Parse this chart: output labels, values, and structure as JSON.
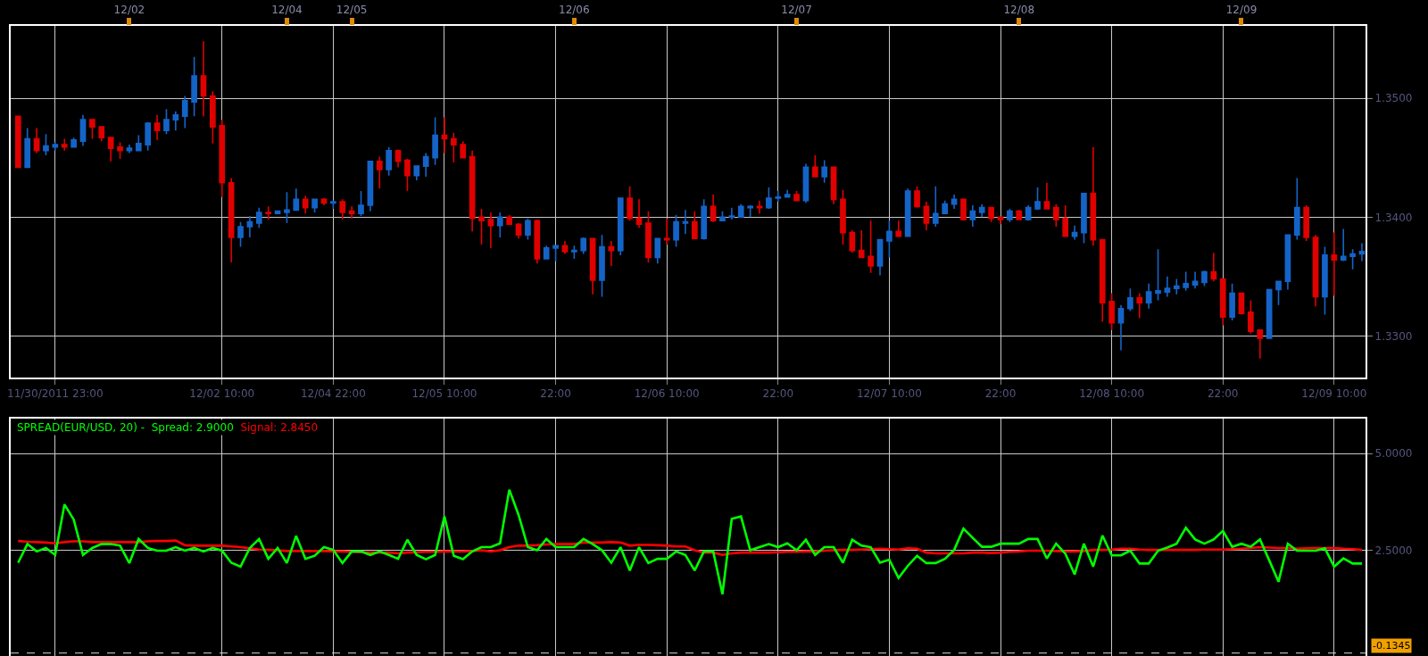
{
  "chart_data": [
    {
      "type": "candlestick",
      "categories": [
        null,
        null,
        null,
        null,
        "11/30/2011 23:00",
        null,
        null,
        null,
        null,
        null,
        null,
        null,
        null,
        null,
        null,
        null,
        null,
        null,
        null,
        null,
        null,
        null,
        "12/02 10:00",
        null,
        null,
        null,
        null,
        null,
        null,
        null,
        null,
        null,
        null,
        null,
        "12/04 22:00",
        null,
        null,
        null,
        null,
        null,
        null,
        null,
        null,
        null,
        null,
        null,
        "12/05 10:00",
        null,
        null,
        null,
        null,
        null,
        null,
        null,
        null,
        null,
        null,
        null,
        "22:00",
        null,
        null,
        null,
        null,
        null,
        null,
        null,
        null,
        null,
        null,
        null,
        "12/06 10:00",
        null,
        null,
        null,
        null,
        null,
        null,
        null,
        null,
        null,
        null,
        null,
        "22:00",
        null,
        null,
        null,
        null,
        null,
        null,
        null,
        null,
        null,
        null,
        null,
        "12/07 10:00",
        null,
        null,
        null,
        null,
        null,
        null,
        null,
        null,
        null,
        null,
        null,
        "22:00",
        null,
        null,
        null,
        null,
        null,
        null,
        null,
        null,
        null,
        null,
        null,
        "12/08 10:00",
        null,
        null,
        null,
        null,
        null,
        null,
        null,
        null,
        null,
        null,
        null,
        "22:00",
        null,
        null,
        null,
        null,
        null,
        null,
        null,
        null,
        null,
        null,
        null,
        "12/09 10:00",
        null,
        null,
        null
      ],
      "ohlc": [
        [
          1.3485,
          1.3485,
          1.3442,
          1.3442
        ],
        [
          1.3442,
          1.3475,
          1.3442,
          1.3466
        ],
        [
          1.3466,
          1.3475,
          1.3454,
          1.3456
        ],
        [
          1.3456,
          1.347,
          1.3452,
          1.346
        ],
        [
          1.3459,
          1.3463,
          1.3456,
          1.3461
        ],
        [
          1.3461,
          1.3466,
          1.3456,
          1.3459
        ],
        [
          1.3459,
          1.3467,
          1.3459,
          1.3465
        ],
        [
          1.3464,
          1.3486,
          1.346,
          1.3482
        ],
        [
          1.3482,
          1.3482,
          1.3466,
          1.3476
        ],
        [
          1.3476,
          1.3476,
          1.3464,
          1.3467
        ],
        [
          1.3467,
          1.3467,
          1.3447,
          1.3458
        ],
        [
          1.3459,
          1.3463,
          1.3449,
          1.3456
        ],
        [
          1.3456,
          1.3461,
          1.3454,
          1.3458
        ],
        [
          1.3456,
          1.3469,
          1.3456,
          1.3462
        ],
        [
          1.3461,
          1.348,
          1.3456,
          1.3479
        ],
        [
          1.3479,
          1.3486,
          1.3465,
          1.3473
        ],
        [
          1.3473,
          1.3491,
          1.347,
          1.3482
        ],
        [
          1.3482,
          1.3489,
          1.3473,
          1.3486
        ],
        [
          1.3485,
          1.3502,
          1.3475,
          1.3498
        ],
        [
          1.3497,
          1.3535,
          1.3485,
          1.3519
        ],
        [
          1.3519,
          1.3548,
          1.3485,
          1.3502
        ],
        [
          1.3502,
          1.3506,
          1.3462,
          1.3476
        ],
        [
          1.3477,
          1.3482,
          1.3417,
          1.3429
        ],
        [
          1.3429,
          1.3433,
          1.3362,
          1.3383
        ],
        [
          1.3383,
          1.3396,
          1.3375,
          1.3392
        ],
        [
          1.3392,
          1.3401,
          1.3383,
          1.3396
        ],
        [
          1.3395,
          1.3408,
          1.3391,
          1.3404
        ],
        [
          1.3404,
          1.3409,
          1.3398,
          1.3403
        ],
        [
          1.3403,
          1.3405,
          1.3403,
          1.3405
        ],
        [
          1.3404,
          1.3421,
          1.3395,
          1.3406
        ],
        [
          1.3406,
          1.3424,
          1.3406,
          1.3415
        ],
        [
          1.3415,
          1.3418,
          1.3403,
          1.3408
        ],
        [
          1.3408,
          1.3415,
          1.3404,
          1.3415
        ],
        [
          1.3415,
          1.3416,
          1.341,
          1.3412
        ],
        [
          1.3412,
          1.3414,
          1.3407,
          1.3413
        ],
        [
          1.3413,
          1.3415,
          1.3398,
          1.3404
        ],
        [
          1.3405,
          1.3409,
          1.3399,
          1.3403
        ],
        [
          1.3403,
          1.3422,
          1.3401,
          1.341
        ],
        [
          1.341,
          1.3447,
          1.3405,
          1.3447
        ],
        [
          1.3447,
          1.3451,
          1.3424,
          1.344
        ],
        [
          1.344,
          1.3459,
          1.3435,
          1.3456
        ],
        [
          1.3456,
          1.3457,
          1.3442,
          1.3447
        ],
        [
          1.3448,
          1.3449,
          1.3422,
          1.3435
        ],
        [
          1.3435,
          1.3443,
          1.3431,
          1.3443
        ],
        [
          1.3443,
          1.3454,
          1.3434,
          1.3451
        ],
        [
          1.345,
          1.3484,
          1.3444,
          1.3469
        ],
        [
          1.3469,
          1.3484,
          1.3454,
          1.3466
        ],
        [
          1.3466,
          1.3471,
          1.3446,
          1.3461
        ],
        [
          1.3461,
          1.3464,
          1.345,
          1.345
        ],
        [
          1.3451,
          1.3456,
          1.3388,
          1.3399
        ],
        [
          1.34,
          1.3407,
          1.3377,
          1.3397
        ],
        [
          1.3398,
          1.3404,
          1.3374,
          1.3393
        ],
        [
          1.3393,
          1.3404,
          1.3383,
          1.34
        ],
        [
          1.34,
          1.3402,
          1.3394,
          1.3394
        ],
        [
          1.3394,
          1.3395,
          1.3382,
          1.3385
        ],
        [
          1.3385,
          1.3399,
          1.3381,
          1.3397
        ],
        [
          1.3397,
          1.3398,
          1.3361,
          1.3365
        ],
        [
          1.3365,
          1.3376,
          1.3365,
          1.3374
        ],
        [
          1.3374,
          1.3376,
          1.3363,
          1.3376
        ],
        [
          1.3376,
          1.338,
          1.3369,
          1.3371
        ],
        [
          1.3371,
          1.3376,
          1.3365,
          1.3372
        ],
        [
          1.3372,
          1.3383,
          1.3369,
          1.3382
        ],
        [
          1.3382,
          1.3382,
          1.3335,
          1.3347
        ],
        [
          1.3347,
          1.3385,
          1.3333,
          1.3375
        ],
        [
          1.3375,
          1.338,
          1.3359,
          1.3372
        ],
        [
          1.3372,
          1.3416,
          1.3368,
          1.3416
        ],
        [
          1.3416,
          1.3426,
          1.3397,
          1.3399
        ],
        [
          1.3399,
          1.3415,
          1.3391,
          1.3394
        ],
        [
          1.3395,
          1.3405,
          1.3362,
          1.3366
        ],
        [
          1.3366,
          1.3382,
          1.3361,
          1.3382
        ],
        [
          1.3382,
          1.3399,
          1.3377,
          1.3381
        ],
        [
          1.3381,
          1.3402,
          1.3375,
          1.3396
        ],
        [
          1.3395,
          1.3406,
          1.3386,
          1.3396
        ],
        [
          1.3396,
          1.3405,
          1.3382,
          1.3382
        ],
        [
          1.3382,
          1.3415,
          1.3381,
          1.3409
        ],
        [
          1.3409,
          1.3419,
          1.3396,
          1.3397
        ],
        [
          1.3397,
          1.3405,
          1.3397,
          1.34
        ],
        [
          1.34,
          1.3408,
          1.3398,
          1.3401
        ],
        [
          1.34,
          1.3411,
          1.34,
          1.3409
        ],
        [
          1.3408,
          1.341,
          1.34,
          1.3409
        ],
        [
          1.3409,
          1.3414,
          1.3403,
          1.3408
        ],
        [
          1.3408,
          1.3425,
          1.3407,
          1.3416
        ],
        [
          1.3416,
          1.3422,
          1.3413,
          1.3417
        ],
        [
          1.3417,
          1.3423,
          1.3417,
          1.3419
        ],
        [
          1.3419,
          1.3422,
          1.3414,
          1.3414
        ],
        [
          1.3414,
          1.3445,
          1.3412,
          1.3442
        ],
        [
          1.3442,
          1.3452,
          1.3434,
          1.3434
        ],
        [
          1.3434,
          1.3448,
          1.3429,
          1.3442
        ],
        [
          1.3442,
          1.3442,
          1.3411,
          1.3415
        ],
        [
          1.3415,
          1.3423,
          1.3377,
          1.3387
        ],
        [
          1.3387,
          1.3389,
          1.337,
          1.3372
        ],
        [
          1.3372,
          1.3389,
          1.3366,
          1.3366
        ],
        [
          1.3367,
          1.3397,
          1.3353,
          1.3359
        ],
        [
          1.3359,
          1.3381,
          1.3351,
          1.3381
        ],
        [
          1.338,
          1.3397,
          1.3366,
          1.3388
        ],
        [
          1.3388,
          1.3397,
          1.3384,
          1.3384
        ],
        [
          1.3384,
          1.3424,
          1.3384,
          1.3422
        ],
        [
          1.3422,
          1.3426,
          1.3408,
          1.3409
        ],
        [
          1.3409,
          1.3413,
          1.3389,
          1.3395
        ],
        [
          1.3395,
          1.3426,
          1.3392,
          1.3403
        ],
        [
          1.3403,
          1.3414,
          1.3403,
          1.3411
        ],
        [
          1.3411,
          1.3419,
          1.3407,
          1.3415
        ],
        [
          1.3415,
          1.3415,
          1.3397,
          1.3398
        ],
        [
          1.3398,
          1.341,
          1.3392,
          1.3405
        ],
        [
          1.3404,
          1.3411,
          1.34,
          1.3408
        ],
        [
          1.3408,
          1.3408,
          1.3396,
          1.3399
        ],
        [
          1.34,
          1.34,
          1.3394,
          1.3398
        ],
        [
          1.3398,
          1.3407,
          1.3396,
          1.3405
        ],
        [
          1.3405,
          1.3406,
          1.3398,
          1.3398
        ],
        [
          1.3398,
          1.341,
          1.3397,
          1.3408
        ],
        [
          1.3407,
          1.3425,
          1.3406,
          1.3413
        ],
        [
          1.3413,
          1.3429,
          1.3407,
          1.3407
        ],
        [
          1.3408,
          1.3411,
          1.3392,
          1.3398
        ],
        [
          1.3399,
          1.341,
          1.3384,
          1.3384
        ],
        [
          1.3384,
          1.3393,
          1.3381,
          1.3387
        ],
        [
          1.3387,
          1.342,
          1.3378,
          1.342
        ],
        [
          1.342,
          1.3459,
          1.3376,
          1.3381
        ],
        [
          1.3381,
          1.3381,
          1.3312,
          1.3328
        ],
        [
          1.3329,
          1.3336,
          1.3305,
          1.3311
        ],
        [
          1.3311,
          1.3326,
          1.3288,
          1.3323
        ],
        [
          1.3323,
          1.334,
          1.3321,
          1.3332
        ],
        [
          1.3332,
          1.3336,
          1.3315,
          1.3328
        ],
        [
          1.3328,
          1.3344,
          1.3323,
          1.3337
        ],
        [
          1.3336,
          1.3373,
          1.333,
          1.3338
        ],
        [
          1.3337,
          1.335,
          1.3333,
          1.334
        ],
        [
          1.334,
          1.3348,
          1.3335,
          1.3342
        ],
        [
          1.3341,
          1.3354,
          1.3338,
          1.3344
        ],
        [
          1.3343,
          1.3354,
          1.334,
          1.3346
        ],
        [
          1.3345,
          1.3355,
          1.3342,
          1.3354
        ],
        [
          1.3354,
          1.337,
          1.3346,
          1.3348
        ],
        [
          1.3348,
          1.3348,
          1.3309,
          1.3316
        ],
        [
          1.3316,
          1.3344,
          1.3313,
          1.3336
        ],
        [
          1.3336,
          1.3336,
          1.3318,
          1.3319
        ],
        [
          1.332,
          1.333,
          1.3302,
          1.3304
        ],
        [
          1.3305,
          1.3305,
          1.3281,
          1.3298
        ],
        [
          1.3298,
          1.3339,
          1.3298,
          1.3339
        ],
        [
          1.3339,
          1.3346,
          1.3326,
          1.3346
        ],
        [
          1.3346,
          1.3385,
          1.3339,
          1.3385
        ],
        [
          1.3385,
          1.3433,
          1.3381,
          1.3408
        ],
        [
          1.3408,
          1.341,
          1.338,
          1.3383
        ],
        [
          1.3383,
          1.3385,
          1.3325,
          1.3333
        ],
        [
          1.3333,
          1.3375,
          1.3318,
          1.3368
        ],
        [
          1.3368,
          1.3387,
          1.3334,
          1.3364
        ],
        [
          1.3364,
          1.339,
          1.3363,
          1.3367
        ],
        [
          1.3367,
          1.3373,
          1.3356,
          1.3369
        ],
        [
          1.3369,
          1.3378,
          1.3363,
          1.3371
        ]
      ],
      "colors": [
        "#e00000",
        "#1464c8",
        "#e00000",
        "#1464c8",
        "#1464c8",
        "#e00000",
        "#1464c8",
        "#1464c8",
        "#e00000",
        "#e00000",
        "#e00000",
        "#e00000",
        "#1464c8",
        "#1464c8",
        "#1464c8",
        "#e00000",
        "#1464c8",
        "#1464c8",
        "#1464c8",
        "#1464c8",
        "#e00000",
        "#e00000",
        "#e00000",
        "#e00000",
        "#1464c8",
        "#1464c8",
        "#1464c8",
        "#e00000",
        "#1464c8",
        "#1464c8",
        "#1464c8",
        "#e00000",
        "#1464c8",
        "#e00000",
        "#1464c8",
        "#e00000",
        "#e00000",
        "#1464c8",
        "#1464c8",
        "#e00000",
        "#1464c8",
        "#e00000",
        "#e00000",
        "#1464c8",
        "#1464c8",
        "#1464c8",
        "#e00000",
        "#e00000",
        "#e00000",
        "#e00000",
        "#e00000",
        "#e00000",
        "#1464c8",
        "#e00000",
        "#e00000",
        "#1464c8",
        "#e00000",
        "#1464c8",
        "#1464c8",
        "#e00000",
        "#1464c8",
        "#1464c8",
        "#e00000",
        "#1464c8",
        "#e00000",
        "#1464c8",
        "#e00000",
        "#e00000",
        "#e00000",
        "#1464c8",
        "#e00000",
        "#1464c8",
        "#1464c8",
        "#e00000",
        "#1464c8",
        "#e00000",
        "#1464c8",
        "#1464c8",
        "#1464c8",
        "#1464c8",
        "#e00000",
        "#1464c8",
        "#1464c8",
        "#1464c8",
        "#e00000",
        "#1464c8",
        "#e00000",
        "#1464c8",
        "#e00000",
        "#e00000",
        "#e00000",
        "#e00000",
        "#e00000",
        "#1464c8",
        "#1464c8",
        "#e00000",
        "#1464c8",
        "#e00000",
        "#e00000",
        "#1464c8",
        "#1464c8",
        "#1464c8",
        "#e00000",
        "#1464c8",
        "#1464c8",
        "#e00000",
        "#e00000",
        "#1464c8",
        "#e00000",
        "#1464c8",
        "#1464c8",
        "#e00000",
        "#e00000",
        "#e00000",
        "#1464c8",
        "#1464c8",
        "#e00000",
        "#e00000",
        "#e00000",
        "#1464c8",
        "#1464c8",
        "#e00000",
        "#1464c8",
        "#1464c8",
        "#1464c8",
        "#1464c8",
        "#1464c8",
        "#1464c8",
        "#1464c8",
        "#e00000",
        "#e00000",
        "#1464c8",
        "#e00000",
        "#e00000",
        "#e00000",
        "#1464c8",
        "#1464c8",
        "#1464c8",
        "#1464c8",
        "#e00000",
        "#e00000",
        "#1464c8",
        "#e00000",
        "#1464c8",
        "#1464c8",
        "#1464c8"
      ],
      "ylim": [
        1.3265,
        1.3561
      ],
      "yticks": [
        {
          "value": 1.33,
          "label": "1.3300"
        },
        {
          "value": 1.34,
          "label": "1.3400"
        },
        {
          "value": 1.35,
          "label": "1.3500"
        }
      ],
      "x2lim": [
        "2011-12-03T11:12",
        "2011-12-09T13:24"
      ],
      "x2ticks": [
        {
          "value": "2011-12-04T00:00",
          "label": "12/02"
        },
        {
          "value": "2011-12-04T17:00",
          "label": "12/04"
        },
        {
          "value": "2011-12-05",
          "label": "12/05"
        },
        {
          "value": "2011-12-06",
          "label": "12/06"
        },
        {
          "value": "2011-12-07",
          "label": "12/07"
        },
        {
          "value": "2011-12-08",
          "label": "12/08"
        },
        {
          "value": "2011-12-09",
          "label": "12/09"
        }
      ],
      "grid": true
    },
    {
      "type": "line",
      "title": "SPREAD(EUR/USD, 20) -",
      "categories": [
        null,
        null,
        null,
        null,
        null,
        null,
        null,
        null,
        null,
        null,
        null,
        null,
        null,
        null,
        null,
        null,
        null,
        null,
        null,
        null,
        null,
        null,
        null,
        null,
        null,
        null,
        null,
        null,
        null,
        null,
        null,
        null,
        null,
        null,
        null,
        null,
        null,
        null,
        null,
        null,
        null,
        null,
        null,
        null,
        null,
        null,
        null,
        null,
        null,
        null,
        null,
        null,
        null,
        null,
        null,
        null,
        null,
        null,
        null,
        null,
        null,
        null,
        null,
        null,
        null,
        null,
        null,
        null,
        null,
        null,
        null,
        null,
        null,
        null,
        null,
        null,
        null,
        null,
        null,
        null,
        null,
        null,
        null,
        null,
        null,
        null,
        null,
        null,
        null,
        null,
        null,
        null,
        null,
        null,
        null,
        null,
        null,
        null,
        null,
        null,
        null,
        null,
        null,
        null,
        null,
        null,
        null,
        null,
        null,
        null,
        null,
        null,
        null,
        null,
        null,
        null,
        null,
        null,
        null,
        null,
        null,
        null,
        null,
        null,
        null,
        null,
        null,
        null,
        null,
        null,
        null,
        null,
        null,
        null,
        null,
        null,
        null,
        null,
        null,
        null,
        null,
        null,
        null,
        null,
        null,
        null
      ],
      "series": [
        {
          "name": "Spread: 2.9000",
          "color": "#00ff00",
          "values": [
            2.19,
            2.67,
            2.48,
            2.57,
            2.39,
            3.69,
            3.3,
            2.39,
            2.57,
            2.67,
            2.67,
            2.63,
            2.18,
            2.8,
            2.57,
            2.5,
            2.5,
            2.59,
            2.5,
            2.57,
            2.48,
            2.57,
            2.5,
            2.19,
            2.09,
            2.57,
            2.8,
            2.29,
            2.57,
            2.18,
            2.88,
            2.29,
            2.37,
            2.59,
            2.52,
            2.18,
            2.48,
            2.48,
            2.39,
            2.48,
            2.39,
            2.29,
            2.78,
            2.39,
            2.28,
            2.39,
            3.38,
            2.37,
            2.28,
            2.48,
            2.59,
            2.59,
            2.69,
            4.07,
            3.42,
            2.59,
            2.51,
            2.8,
            2.59,
            2.59,
            2.59,
            2.8,
            2.67,
            2.51,
            2.19,
            2.59,
            1.99,
            2.59,
            2.18,
            2.29,
            2.29,
            2.48,
            2.39,
            1.99,
            2.48,
            2.48,
            1.38,
            3.32,
            3.38,
            2.51,
            2.59,
            2.67,
            2.59,
            2.69,
            2.51,
            2.78,
            2.39,
            2.59,
            2.59,
            2.19,
            2.78,
            2.63,
            2.59,
            2.19,
            2.27,
            1.8,
            2.11,
            2.37,
            2.18,
            2.18,
            2.29,
            2.52,
            3.07,
            2.83,
            2.6,
            2.6,
            2.68,
            2.68,
            2.68,
            2.8,
            2.8,
            2.3,
            2.68,
            2.42,
            1.89,
            2.68,
            2.09,
            2.89,
            2.38,
            2.38,
            2.5,
            2.17,
            2.17,
            2.5,
            2.58,
            2.68,
            3.09,
            2.79,
            2.68,
            2.79,
            3.01,
            2.6,
            2.68,
            2.6,
            2.79,
            2.25,
            1.7,
            2.68,
            2.5,
            2.5,
            2.5,
            2.56,
            2.09,
            2.3,
            2.17,
            2.17
          ]
        },
        {
          "name": "Signal: 2.8450",
          "color": "#ff0000",
          "values": [
            2.75,
            2.73,
            2.72,
            2.71,
            2.69,
            2.72,
            2.74,
            2.74,
            2.72,
            2.72,
            2.72,
            2.72,
            2.72,
            2.72,
            2.74,
            2.75,
            2.75,
            2.76,
            2.64,
            2.63,
            2.63,
            2.63,
            2.63,
            2.61,
            2.59,
            2.56,
            2.53,
            2.52,
            2.51,
            2.49,
            2.49,
            2.49,
            2.49,
            2.49,
            2.48,
            2.48,
            2.47,
            2.46,
            2.45,
            2.45,
            2.45,
            2.43,
            2.45,
            2.46,
            2.47,
            2.47,
            2.48,
            2.48,
            2.48,
            2.49,
            2.51,
            2.48,
            2.51,
            2.59,
            2.63,
            2.63,
            2.64,
            2.66,
            2.67,
            2.67,
            2.67,
            2.71,
            2.71,
            2.71,
            2.72,
            2.71,
            2.63,
            2.65,
            2.65,
            2.64,
            2.63,
            2.61,
            2.61,
            2.51,
            2.45,
            2.45,
            2.39,
            2.43,
            2.45,
            2.45,
            2.45,
            2.45,
            2.46,
            2.47,
            2.47,
            2.48,
            2.48,
            2.5,
            2.51,
            2.52,
            2.52,
            2.53,
            2.54,
            2.55,
            2.54,
            2.53,
            2.56,
            2.55,
            2.45,
            2.43,
            2.43,
            2.43,
            2.43,
            2.45,
            2.45,
            2.44,
            2.45,
            2.47,
            2.48,
            2.5,
            2.5,
            2.5,
            2.49,
            2.48,
            2.48,
            2.49,
            2.52,
            2.52,
            2.53,
            2.55,
            2.55,
            2.53,
            2.52,
            2.52,
            2.52,
            2.52,
            2.52,
            2.52,
            2.53,
            2.53,
            2.53,
            2.54,
            2.55,
            2.57,
            2.59,
            2.58,
            2.57,
            2.57,
            2.55,
            2.56,
            2.57,
            2.57,
            2.57,
            2.55,
            2.54,
            2.52
          ]
        }
      ],
      "ylim": [
        -0.21,
        5.9
      ],
      "yticks": [
        {
          "value": 2.5,
          "label": "2.5000"
        },
        {
          "value": 5,
          "label": "5.0000"
        }
      ],
      "ref_lines": [
        {
          "axis": "y",
          "value": -0.1345,
          "label": "-0.1345",
          "color": "#dddddd",
          "line_style": "dashed"
        }
      ],
      "tick_labels": "y",
      "grid": true,
      "line_style": "solid"
    }
  ]
}
